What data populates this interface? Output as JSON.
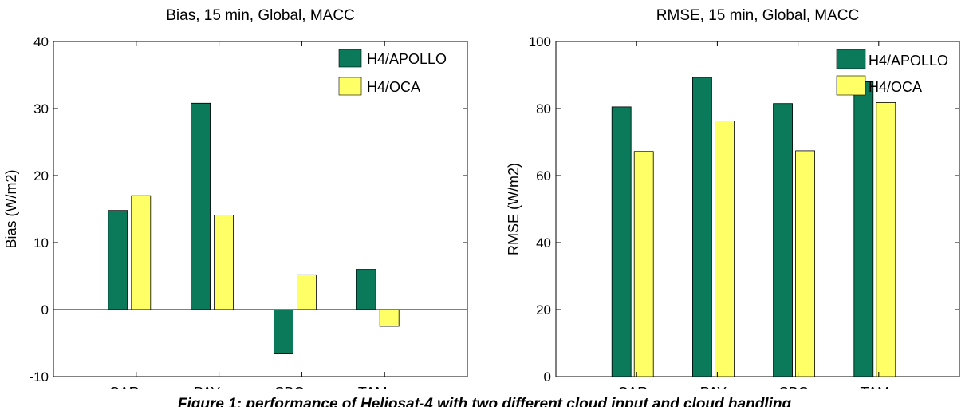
{
  "chart_data": [
    {
      "type": "bar",
      "title": "Bias, 15 min, Global, MACC",
      "xlabel": "",
      "ylabel": "Bias (W/m2)",
      "categories": [
        "CAR",
        "PAY",
        "SBO",
        "TAM"
      ],
      "ylim": [
        -10,
        40
      ],
      "yticks": [
        -10,
        0,
        10,
        20,
        30,
        40
      ],
      "series": [
        {
          "name": "H4/APOLLO",
          "values": [
            14.8,
            30.8,
            -6.5,
            6.0
          ],
          "color": "#0b7a5a"
        },
        {
          "name": "H4/OCA",
          "values": [
            17.0,
            14.1,
            5.2,
            -2.5
          ],
          "color": "#ffff66"
        }
      ],
      "legend": "top-right",
      "grid": false
    },
    {
      "type": "bar",
      "title": "RMSE, 15 min, Global, MACC",
      "xlabel": "",
      "ylabel": "RMSE (W/m2)",
      "categories": [
        "CAR",
        "PAY",
        "SBO",
        "TAM"
      ],
      "ylim": [
        0,
        100
      ],
      "yticks": [
        0,
        20,
        40,
        60,
        80,
        100
      ],
      "series": [
        {
          "name": "H4/APOLLO",
          "values": [
            80.5,
            89.3,
            81.5,
            88.0
          ],
          "color": "#0b7a5a"
        },
        {
          "name": "H4/OCA",
          "values": [
            67.2,
            76.3,
            67.4,
            81.8
          ],
          "color": "#ffff66"
        }
      ],
      "legend": "top-right",
      "grid": false
    }
  ],
  "caption": "Figure 1: performance of Heliosat-4 with two different cloud input and cloud handling"
}
